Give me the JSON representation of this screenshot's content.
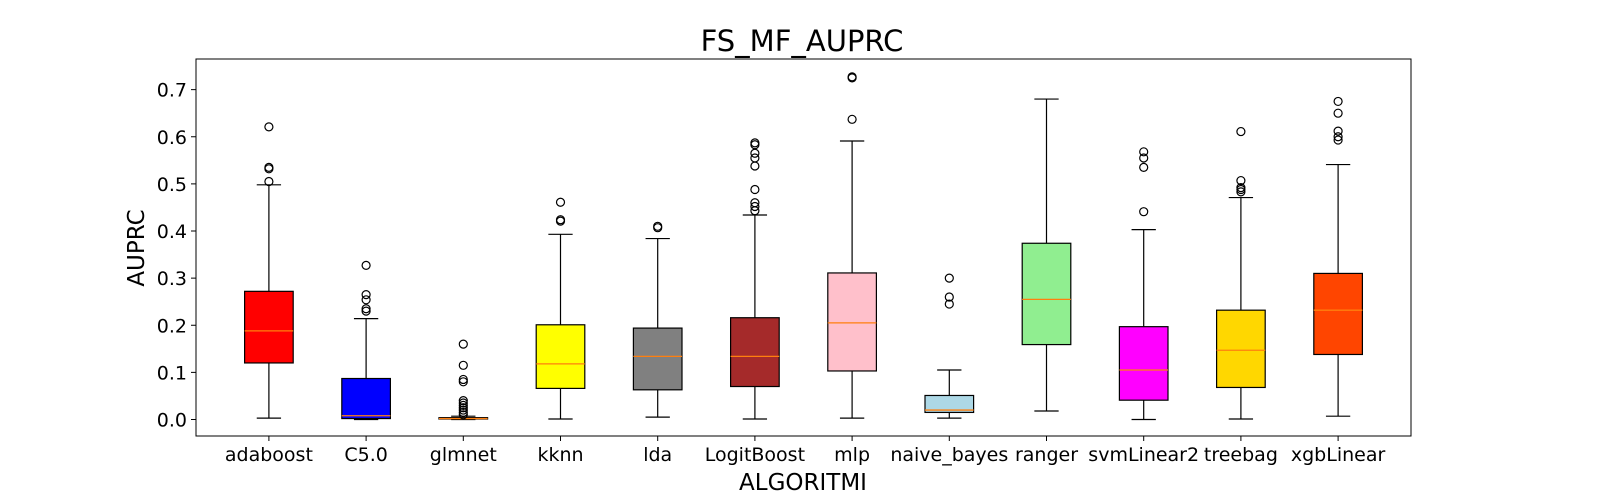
{
  "chart_data": {
    "type": "box",
    "title": "FS_MF_AUPRC",
    "xlabel": "ALGORITMI",
    "ylabel": "AUPRC",
    "ylim": [
      -0.035,
      0.765
    ],
    "yticks": [
      0.0,
      0.1,
      0.2,
      0.3,
      0.4,
      0.5,
      0.6,
      0.7
    ],
    "ytick_labels": [
      "0.0",
      "0.1",
      "0.2",
      "0.3",
      "0.4",
      "0.5",
      "0.6",
      "0.7"
    ],
    "grid": false,
    "median_color": "#ff7f0e",
    "categories": [
      "adaboost",
      "C5.0",
      "glmnet",
      "kknn",
      "lda",
      "LogitBoost",
      "mlp",
      "naive_bayes",
      "ranger",
      "svmLinear2",
      "treebag",
      "xgbLinear"
    ],
    "boxes": [
      {
        "name": "adaboost",
        "color": "#ff0000",
        "whisker_low": 0.003,
        "q1": 0.12,
        "median": 0.188,
        "q3": 0.272,
        "whisker_high": 0.498,
        "outliers": [
          0.505,
          0.532,
          0.535,
          0.621
        ]
      },
      {
        "name": "C5.0",
        "color": "#0000ff",
        "whisker_low": 0.0,
        "q1": 0.002,
        "median": 0.008,
        "q3": 0.087,
        "whisker_high": 0.214,
        "outliers": [
          0.23,
          0.235,
          0.254,
          0.265,
          0.327
        ]
      },
      {
        "name": "glmnet",
        "color": "#0000ff",
        "whisker_low": 0.0,
        "q1": 0.001,
        "median": 0.002,
        "q3": 0.004,
        "whisker_high": 0.007,
        "outliers": [
          0.01,
          0.015,
          0.02,
          0.025,
          0.03,
          0.035,
          0.04,
          0.08,
          0.085,
          0.115,
          0.16
        ]
      },
      {
        "name": "kknn",
        "color": "#ffff00",
        "whisker_low": 0.001,
        "q1": 0.066,
        "median": 0.118,
        "q3": 0.201,
        "whisker_high": 0.393,
        "outliers": [
          0.421,
          0.424,
          0.461
        ]
      },
      {
        "name": "lda",
        "color": "#808080",
        "whisker_low": 0.005,
        "q1": 0.063,
        "median": 0.134,
        "q3": 0.194,
        "whisker_high": 0.384,
        "outliers": [
          0.407,
          0.41
        ]
      },
      {
        "name": "LogitBoost",
        "color": "#a52a2a",
        "whisker_low": 0.001,
        "q1": 0.07,
        "median": 0.134,
        "q3": 0.216,
        "whisker_high": 0.434,
        "outliers": [
          0.443,
          0.452,
          0.46,
          0.488,
          0.538,
          0.555,
          0.565,
          0.583,
          0.587
        ]
      },
      {
        "name": "mlp",
        "color": "#ffc0cb",
        "whisker_low": 0.003,
        "q1": 0.103,
        "median": 0.205,
        "q3": 0.311,
        "whisker_high": 0.591,
        "outliers": [
          0.637,
          0.725,
          0.727
        ]
      },
      {
        "name": "naive_bayes",
        "color": "#add8e6",
        "whisker_low": 0.003,
        "q1": 0.015,
        "median": 0.02,
        "q3": 0.051,
        "whisker_high": 0.105,
        "outliers": [
          0.245,
          0.26,
          0.3
        ]
      },
      {
        "name": "ranger",
        "color": "#90ee90",
        "whisker_low": 0.018,
        "q1": 0.159,
        "median": 0.255,
        "q3": 0.374,
        "whisker_high": 0.68,
        "outliers": []
      },
      {
        "name": "svmLinear2",
        "color": "#ff00ff",
        "whisker_low": 0.0,
        "q1": 0.041,
        "median": 0.105,
        "q3": 0.197,
        "whisker_high": 0.403,
        "outliers": [
          0.441,
          0.535,
          0.555,
          0.568
        ]
      },
      {
        "name": "treebag",
        "color": "#ffd700",
        "whisker_low": 0.001,
        "q1": 0.068,
        "median": 0.147,
        "q3": 0.232,
        "whisker_high": 0.471,
        "outliers": [
          0.483,
          0.488,
          0.492,
          0.507,
          0.611
        ]
      },
      {
        "name": "xgbLinear",
        "color": "#ff4500",
        "whisker_low": 0.007,
        "q1": 0.138,
        "median": 0.232,
        "q3": 0.31,
        "whisker_high": 0.541,
        "outliers": [
          0.593,
          0.6,
          0.612,
          0.65,
          0.675
        ]
      }
    ]
  }
}
